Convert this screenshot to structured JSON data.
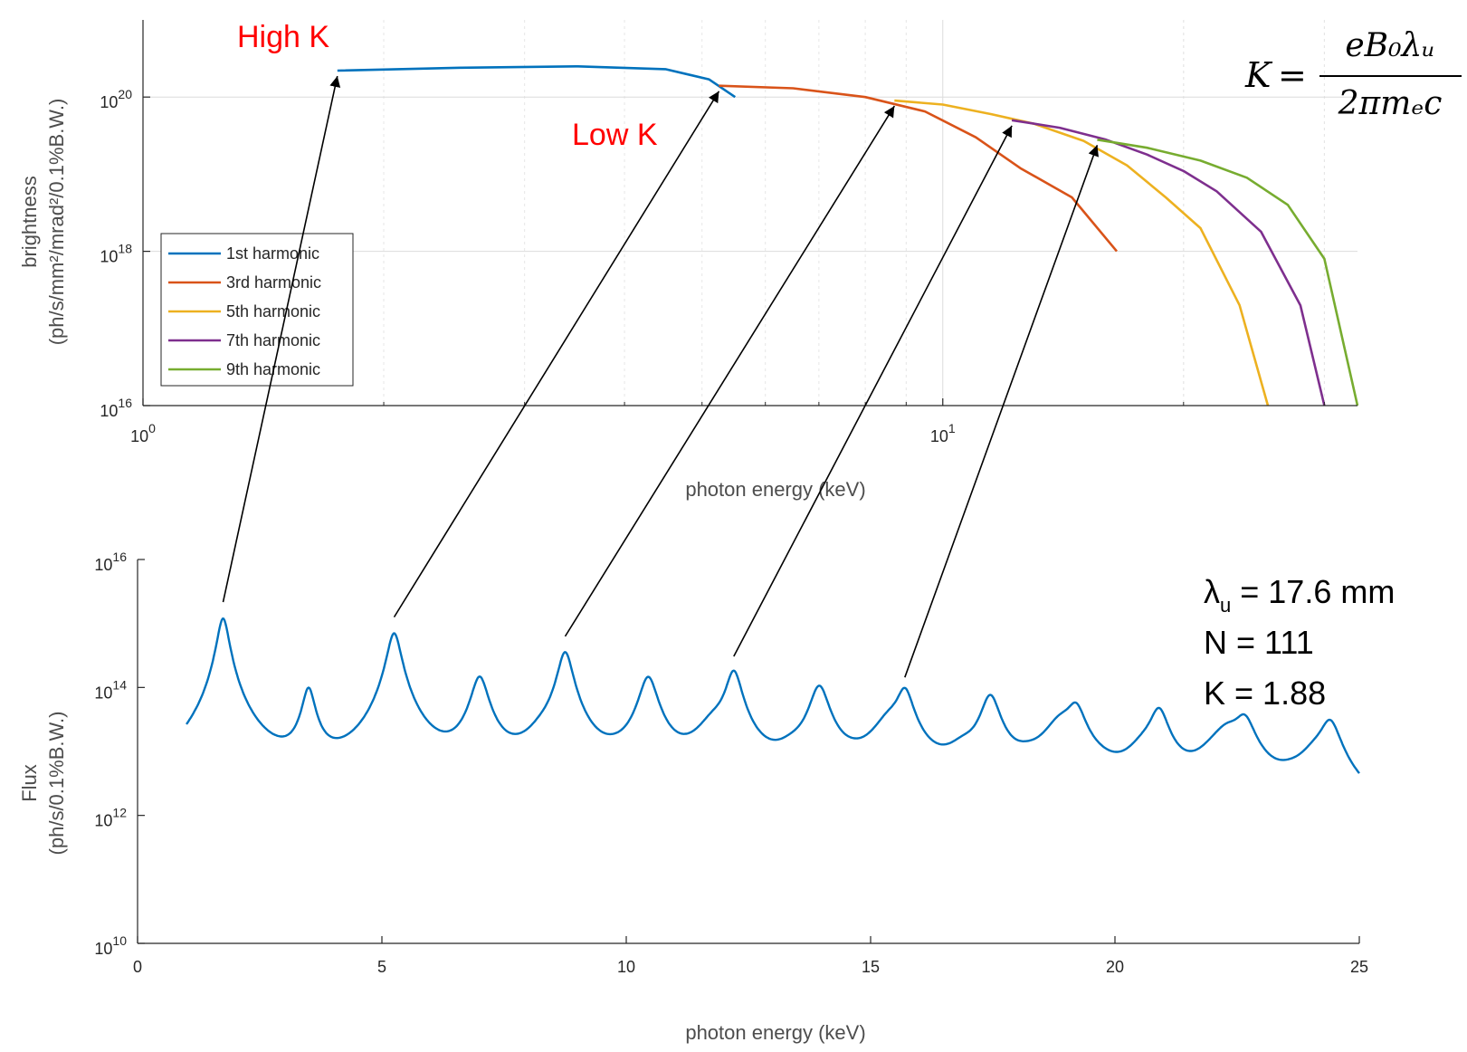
{
  "chart_data": [
    {
      "type": "line",
      "id": "brightness",
      "xlabel": "photon energy (keV)",
      "ylabel": [
        "brightness",
        "(ph/s/mm²/mrad²/0.1%B.W.)"
      ],
      "xscale": "log",
      "yscale": "log",
      "xlim": [
        1,
        33
      ],
      "ylim": [
        1e+16,
        1e+21
      ],
      "x_tick_labels": [
        {
          "base": "10",
          "exp": "0"
        },
        {
          "base": "10",
          "exp": "1"
        }
      ],
      "y_tick_labels": [
        {
          "base": "10",
          "exp": "16"
        },
        {
          "base": "10",
          "exp": "18"
        },
        {
          "base": "10",
          "exp": "20"
        }
      ],
      "legend_position": "bottom-left",
      "series": [
        {
          "name": "1st harmonic",
          "color": "#0072BD",
          "x": [
            1.75,
            2.5,
            3.5,
            4.5,
            5.1,
            5.5
          ],
          "y": [
            2.2e+20,
            2.4e+20,
            2.5e+20,
            2.3e+20,
            1.7e+20,
            1e+20
          ]
        },
        {
          "name": "3rd harmonic",
          "color": "#D95319",
          "x": [
            5.25,
            6.5,
            8,
            9.5,
            11,
            12.5,
            14.5,
            16.5
          ],
          "y": [
            1.4e+20,
            1.3e+20,
            1e+20,
            6.5e+19,
            3e+19,
            1.2e+19,
            5e+18,
            1e+18
          ]
        },
        {
          "name": "5th harmonic",
          "color": "#EDB120",
          "x": [
            8.7,
            10,
            11.5,
            13,
            15,
            17,
            19,
            21,
            23.5,
            25.5
          ],
          "y": [
            9e+19,
            8e+19,
            6e+19,
            4.5e+19,
            2.7e+19,
            1.3e+19,
            5e+18,
            2e+18,
            2e+17,
            1e+16
          ]
        },
        {
          "name": "7th harmonic",
          "color": "#7E2F8E",
          "x": [
            12.2,
            14,
            16,
            18,
            20,
            22,
            25,
            28,
            30
          ],
          "y": [
            5e+19,
            4e+19,
            2.8e+19,
            1.8e+19,
            1.1e+19,
            6e+18,
            1.8e+18,
            2e+17,
            1e+16
          ]
        },
        {
          "name": "9th harmonic",
          "color": "#77AC30",
          "x": [
            15.6,
            18,
            21,
            24,
            27,
            30,
            33
          ],
          "y": [
            2.8e+19,
            2.2e+19,
            1.5e+19,
            9e+18,
            4e+18,
            8e+17,
            1e+16
          ]
        }
      ]
    },
    {
      "type": "line",
      "id": "flux",
      "xlabel": "photon energy (keV)",
      "ylabel": [
        "Flux",
        "(ph/s/0.1%B.W.)"
      ],
      "xscale": "linear",
      "yscale": "log",
      "xlim": [
        0,
        25
      ],
      "ylim": [
        10000000000.0,
        1e+16
      ],
      "xticks": [
        0,
        5,
        10,
        15,
        20,
        25
      ],
      "y_tick_labels": [
        {
          "base": "10",
          "exp": "10"
        },
        {
          "base": "10",
          "exp": "12"
        },
        {
          "base": "10",
          "exp": "14"
        },
        {
          "base": "10",
          "exp": "16"
        }
      ],
      "color": "#0072BD",
      "peaks": [
        {
          "x": 1.75,
          "y": 1200000000000000.0,
          "w": 0.11
        },
        {
          "x": 3.5,
          "y": 90000000000000.0,
          "w": 0.12
        },
        {
          "x": 5.25,
          "y": 700000000000000.0,
          "w": 0.13
        },
        {
          "x": 7.0,
          "y": 140000000000000.0,
          "w": 0.16
        },
        {
          "x": 8.75,
          "y": 350000000000000.0,
          "w": 0.14
        },
        {
          "x": 10.45,
          "y": 140000000000000.0,
          "w": 0.17
        },
        {
          "x": 12.2,
          "y": 170000000000000.0,
          "w": 0.15
        },
        {
          "x": 13.95,
          "y": 100000000000000.0,
          "w": 0.18
        },
        {
          "x": 15.7,
          "y": 80000000000000.0,
          "w": 0.16
        },
        {
          "x": 17.45,
          "y": 70000000000000.0,
          "w": 0.18
        },
        {
          "x": 19.2,
          "y": 40000000000000.0,
          "w": 0.18
        },
        {
          "x": 20.9,
          "y": 40000000000000.0,
          "w": 0.18
        },
        {
          "x": 22.65,
          "y": 26000000000000.0,
          "w": 0.2
        },
        {
          "x": 24.4,
          "y": 26000000000000.0,
          "w": 0.2
        }
      ],
      "secondary_peaks": [
        {
          "x": 4.9,
          "y": 900000000000.0,
          "w": 0.3
        },
        {
          "x": 8.3,
          "y": 8000000000000.0,
          "w": 0.35
        },
        {
          "x": 9.8,
          "y": 900000000000.0,
          "w": 0.35
        },
        {
          "x": 11.8,
          "y": 20000000000000.0,
          "w": 0.35
        },
        {
          "x": 13.4,
          "y": 4000000000000.0,
          "w": 0.35
        },
        {
          "x": 14.6,
          "y": 800000000000.0,
          "w": 0.35
        },
        {
          "x": 15.4,
          "y": 25000000000000.0,
          "w": 0.35
        },
        {
          "x": 16.9,
          "y": 6000000000000.0,
          "w": 0.35
        },
        {
          "x": 18.2,
          "y": 2000000000000.0,
          "w": 0.35
        },
        {
          "x": 18.9,
          "y": 25000000000000.0,
          "w": 0.35
        },
        {
          "x": 19.7,
          "y": 600000000000.0,
          "w": 0.35
        },
        {
          "x": 20.6,
          "y": 7000000000000.0,
          "w": 0.35
        },
        {
          "x": 22.0,
          "y": 2000000000000.0,
          "w": 0.35
        },
        {
          "x": 22.3,
          "y": 18000000000000.0,
          "w": 0.35
        },
        {
          "x": 23.6,
          "y": 900000000000.0,
          "w": 0.35
        },
        {
          "x": 24.1,
          "y": 6000000000000.0,
          "w": 0.35
        }
      ],
      "baseline": 60000000000.0
    }
  ],
  "annotations": {
    "high_k": "High K",
    "low_k": "Low K",
    "equation": {
      "lhs": "K",
      "eq": "=",
      "numerator": "eB₀λᵤ",
      "denominator": "2πmₑc"
    },
    "params": [
      {
        "sym": "λ",
        "sub": "u",
        "rest": " = 17.6 mm"
      },
      {
        "sym": "N",
        "sub": "",
        "rest": " = 111"
      },
      {
        "sym": "K",
        "sub": "",
        "rest": " = 1.88"
      }
    ]
  }
}
